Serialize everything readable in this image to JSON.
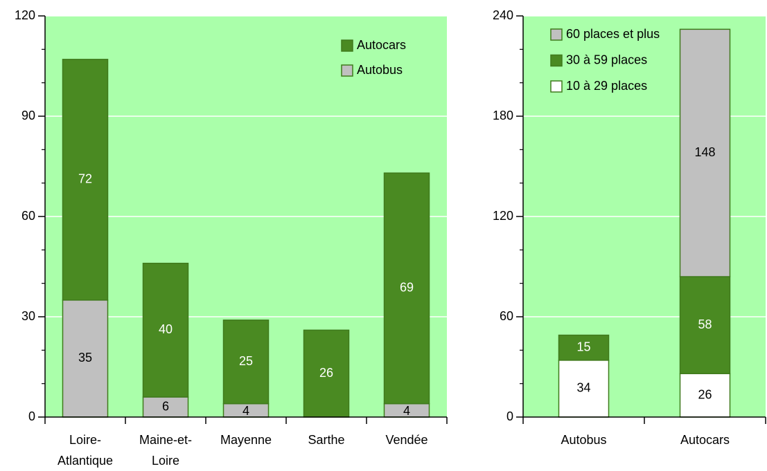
{
  "chart_data": [
    {
      "type": "stacked_bar",
      "categories": [
        "Loire-Atlantique",
        "Maine-et-Loire",
        "Mayenne",
        "Sarthe",
        "Vendée"
      ],
      "series": [
        {
          "name": "Autobus",
          "color": "#c0c0c0",
          "values": [
            35,
            6,
            4,
            null,
            4
          ]
        },
        {
          "name": "Autocars",
          "color": "#4a8a22",
          "values": [
            72,
            40,
            25,
            26,
            69
          ]
        }
      ],
      "ylim": [
        0,
        120
      ],
      "yticks": [
        0,
        30,
        60,
        90,
        120
      ],
      "grid": true,
      "legend": "top-right"
    },
    {
      "type": "stacked_bar",
      "categories": [
        "Autobus",
        "Autocars"
      ],
      "series": [
        {
          "name": "10 à 29 places",
          "color": "#ffffff",
          "values": [
            34,
            26
          ]
        },
        {
          "name": "30 à 59 places",
          "color": "#4a8a22",
          "values": [
            15,
            58
          ]
        },
        {
          "name": "60 places et plus",
          "color": "#c0c0c0",
          "values": [
            null,
            148
          ]
        }
      ],
      "ylim": [
        0,
        240
      ],
      "yticks": [
        0,
        60,
        120,
        180,
        240
      ],
      "grid": true,
      "legend": "top-left"
    }
  ]
}
